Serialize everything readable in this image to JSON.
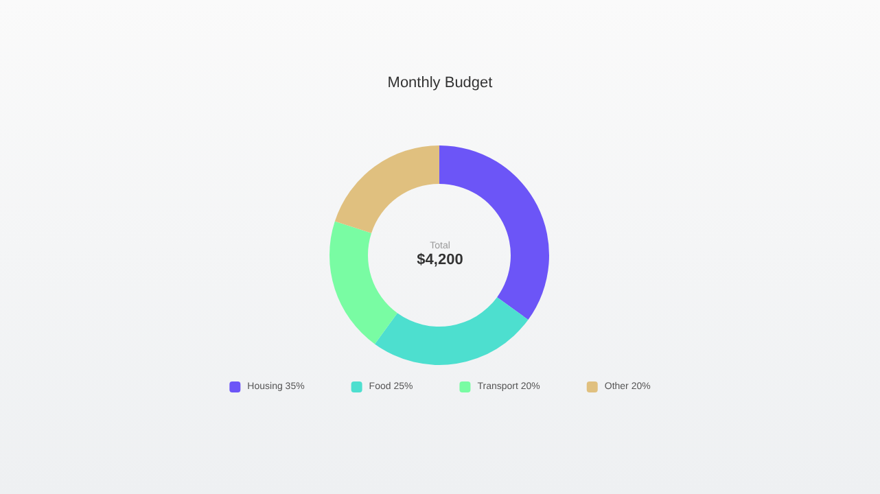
{
  "chart_data": {
    "type": "donut",
    "title": "Monthly Budget",
    "categories": [
      "Housing",
      "Food",
      "Transport",
      "Other"
    ],
    "values": [
      35,
      25,
      20,
      20
    ],
    "colors": [
      "#6c55f7",
      "#4ddfcf",
      "#79fca3",
      "#e0c07f"
    ],
    "value_labels": [
      "35%",
      "25%",
      "20%",
      "20%"
    ],
    "annotations": [
      "Total",
      "$4,200"
    ],
    "legend": "bottom"
  }
}
